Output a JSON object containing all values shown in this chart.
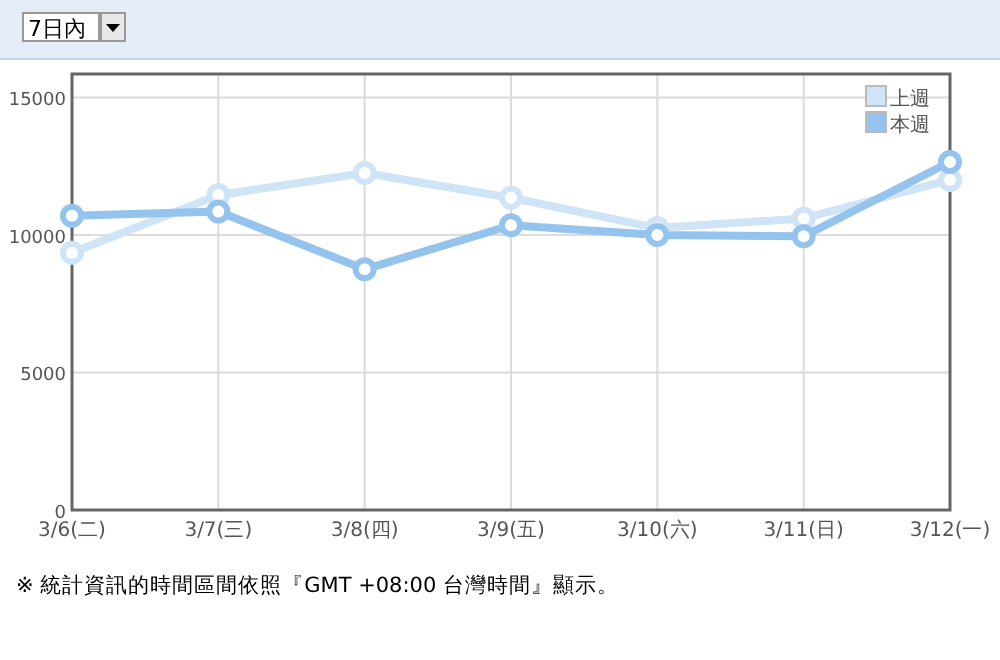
{
  "chart_data": {
    "type": "line",
    "categories": [
      "3/6(二)",
      "3/7(三)",
      "3/8(四)",
      "3/9(五)",
      "3/10(六)",
      "3/11(日)",
      "3/12(一)"
    ],
    "series": [
      {
        "name": "上週",
        "color": "#cfe4f7",
        "values": [
          9350,
          11450,
          12250,
          11350,
          10250,
          10600,
          12000
        ]
      },
      {
        "name": "本週",
        "color": "#94c4ee",
        "values": [
          10700,
          10850,
          8750,
          10350,
          10000,
          9950,
          12650
        ]
      }
    ],
    "ylim": [
      0,
      15850
    ],
    "yticks": [
      0,
      5000,
      10000,
      15000
    ],
    "grid": true,
    "legend": "top right",
    "marker": "circle",
    "annotations": [
      "7日內",
      "※ 統計資訊的時間區間依照『GMT +08:00 台灣時間』顯示。"
    ]
  }
}
